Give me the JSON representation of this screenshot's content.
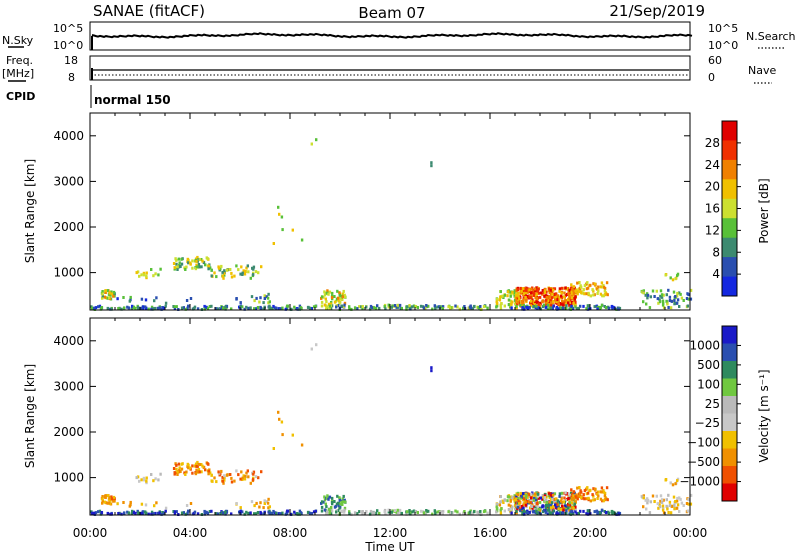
{
  "header": {
    "station": "SANAE (fitACF)",
    "beam": "Beam 07",
    "date": "21/Sep/2019"
  },
  "top_panel": {
    "left_label": "N.Sky",
    "right_label": "N.Search",
    "left_ticks": [
      "10^5",
      "10^0"
    ],
    "right_ticks": [
      "10^5",
      "10^0"
    ]
  },
  "freq_panel": {
    "left_label_1": "Freq.",
    "left_label_2": "[MHz]",
    "right_label": "Nave",
    "left_ticks": [
      "18",
      "8"
    ],
    "right_ticks": [
      "60",
      "0"
    ]
  },
  "cpid": {
    "label": "CPID",
    "mode": "normal 150"
  },
  "x_axis": {
    "label": "Time UT",
    "ticks": [
      "00:00",
      "04:00",
      "08:00",
      "12:00",
      "16:00",
      "20:00",
      "00:00"
    ],
    "range_hours": [
      0,
      24
    ]
  },
  "colors": {
    "power": [
      "#1428e0",
      "#2a4fb0",
      "#3c8a70",
      "#58c038",
      "#cce030",
      "#f0c000",
      "#f08000",
      "#f03000",
      "#e00000"
    ],
    "velocity": [
      "#e00000",
      "#f05000",
      "#f09000",
      "#f0c000",
      "#c8c8c8",
      "#bababa",
      "#70c840",
      "#2e8a5e",
      "#2a4fb0",
      "#1a1ac8"
    ]
  },
  "chart_data": [
    {
      "type": "heatmap",
      "id": "power",
      "ylabel": "Slant Range [km]",
      "ylim": [
        180,
        4500
      ],
      "yticks": [
        "1000",
        "2000",
        "3000",
        "4000"
      ],
      "colorbar": {
        "label": "Power [dB]",
        "range": [
          0,
          32
        ],
        "ticks": [
          "4",
          "8",
          "12",
          "16",
          "20",
          "24",
          "28"
        ]
      }
    },
    {
      "type": "heatmap",
      "id": "velocity",
      "ylabel": "Slant Range [km]",
      "ylim": [
        180,
        4500
      ],
      "yticks": [
        "1000",
        "2000",
        "3000",
        "4000"
      ],
      "colorbar": {
        "label": "Velocity [m s⁻¹]",
        "ticks": [
          "1000",
          "500",
          "100",
          "25",
          "−25",
          "−100",
          "−500",
          "−1000"
        ]
      }
    }
  ]
}
